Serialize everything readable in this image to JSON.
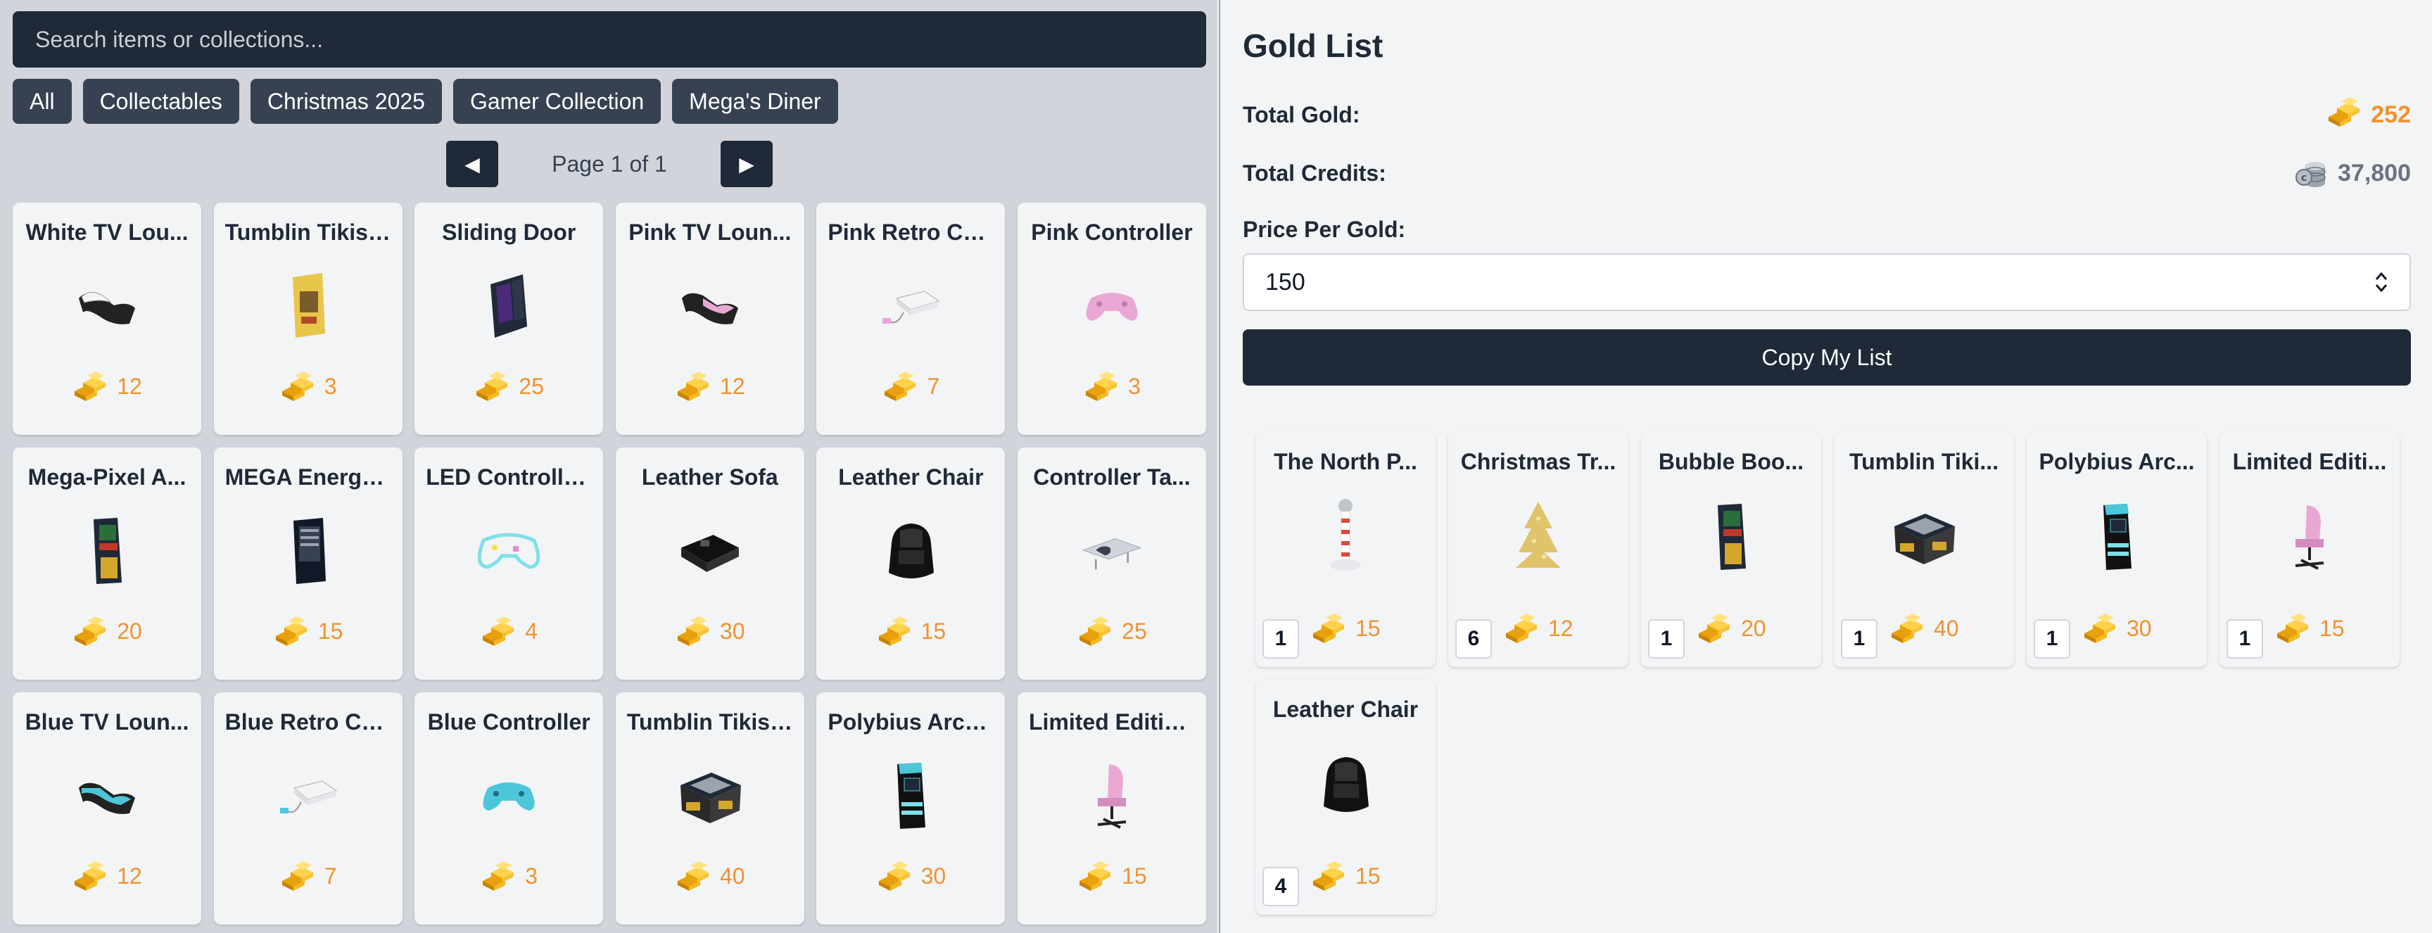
{
  "colors": {
    "accent_gold": "#f0922e",
    "dark": "#1f2937",
    "chip": "#374151"
  },
  "search": {
    "placeholder": "Search items or collections..."
  },
  "filters": [
    "All",
    "Collectables",
    "Christmas 2025",
    "Gamer Collection",
    "Mega's Diner"
  ],
  "pager": {
    "prev_icon": "◀",
    "next_icon": "▶",
    "text": "Page 1 of 1"
  },
  "items": [
    {
      "name": "White TV Lou...",
      "price": "12",
      "icon": "tv-lounger-white-icon"
    },
    {
      "name": "Tumblin Tikis ...",
      "price": "3",
      "icon": "tumblin-tikis-poster-icon"
    },
    {
      "name": "Sliding Door",
      "price": "25",
      "icon": "sliding-door-icon"
    },
    {
      "name": "Pink TV Loun...",
      "price": "12",
      "icon": "tv-lounger-pink-icon"
    },
    {
      "name": "Pink Retro Co...",
      "price": "7",
      "icon": "retro-console-pink-icon"
    },
    {
      "name": "Pink Controller",
      "price": "3",
      "icon": "controller-pink-icon"
    },
    {
      "name": "Mega-Pixel A...",
      "price": "20",
      "icon": "arcade-machine-icon"
    },
    {
      "name": "MEGA Energy...",
      "price": "15",
      "icon": "vending-machine-icon"
    },
    {
      "name": "LED Controlle...",
      "price": "4",
      "icon": "led-controller-icon"
    },
    {
      "name": "Leather Sofa",
      "price": "30",
      "icon": "leather-sofa-icon"
    },
    {
      "name": "Leather Chair",
      "price": "15",
      "icon": "leather-chair-icon"
    },
    {
      "name": "Controller Ta...",
      "price": "25",
      "icon": "controller-table-icon"
    },
    {
      "name": "Blue TV Loun...",
      "price": "12",
      "icon": "tv-lounger-blue-icon"
    },
    {
      "name": "Blue Retro Co...",
      "price": "7",
      "icon": "retro-console-blue-icon"
    },
    {
      "name": "Blue Controller",
      "price": "3",
      "icon": "controller-blue-icon"
    },
    {
      "name": "Tumblin Tikis ...",
      "price": "40",
      "icon": "arcade-table-icon"
    },
    {
      "name": "Polybius Arca...",
      "price": "30",
      "icon": "polybius-arcade-icon"
    },
    {
      "name": "Limited Editio...",
      "price": "15",
      "icon": "gaming-chair-pink-icon"
    }
  ],
  "gold_list": {
    "title": "Gold List",
    "total_gold_label": "Total Gold:",
    "total_gold": "252",
    "total_credits_label": "Total Credits:",
    "total_credits": "37,800",
    "price_per_gold_label": "Price Per Gold:",
    "price_per_gold": "150",
    "copy_button": "Copy My List",
    "items": [
      {
        "name": "The North P...",
        "qty": "1",
        "price": "15",
        "icon": "north-pole-icon"
      },
      {
        "name": "Christmas Tr...",
        "qty": "6",
        "price": "12",
        "icon": "christmas-tree-icon"
      },
      {
        "name": "Bubble Boo...",
        "qty": "1",
        "price": "20",
        "icon": "arcade-machine-icon"
      },
      {
        "name": "Tumblin Tiki...",
        "qty": "1",
        "price": "40",
        "icon": "arcade-table-icon"
      },
      {
        "name": "Polybius Arc...",
        "qty": "1",
        "price": "30",
        "icon": "polybius-arcade-icon"
      },
      {
        "name": "Limited Editi...",
        "qty": "1",
        "price": "15",
        "icon": "gaming-chair-pink-icon"
      },
      {
        "name": "Leather Chair",
        "qty": "4",
        "price": "15",
        "icon": "leather-chair-icon"
      }
    ]
  }
}
